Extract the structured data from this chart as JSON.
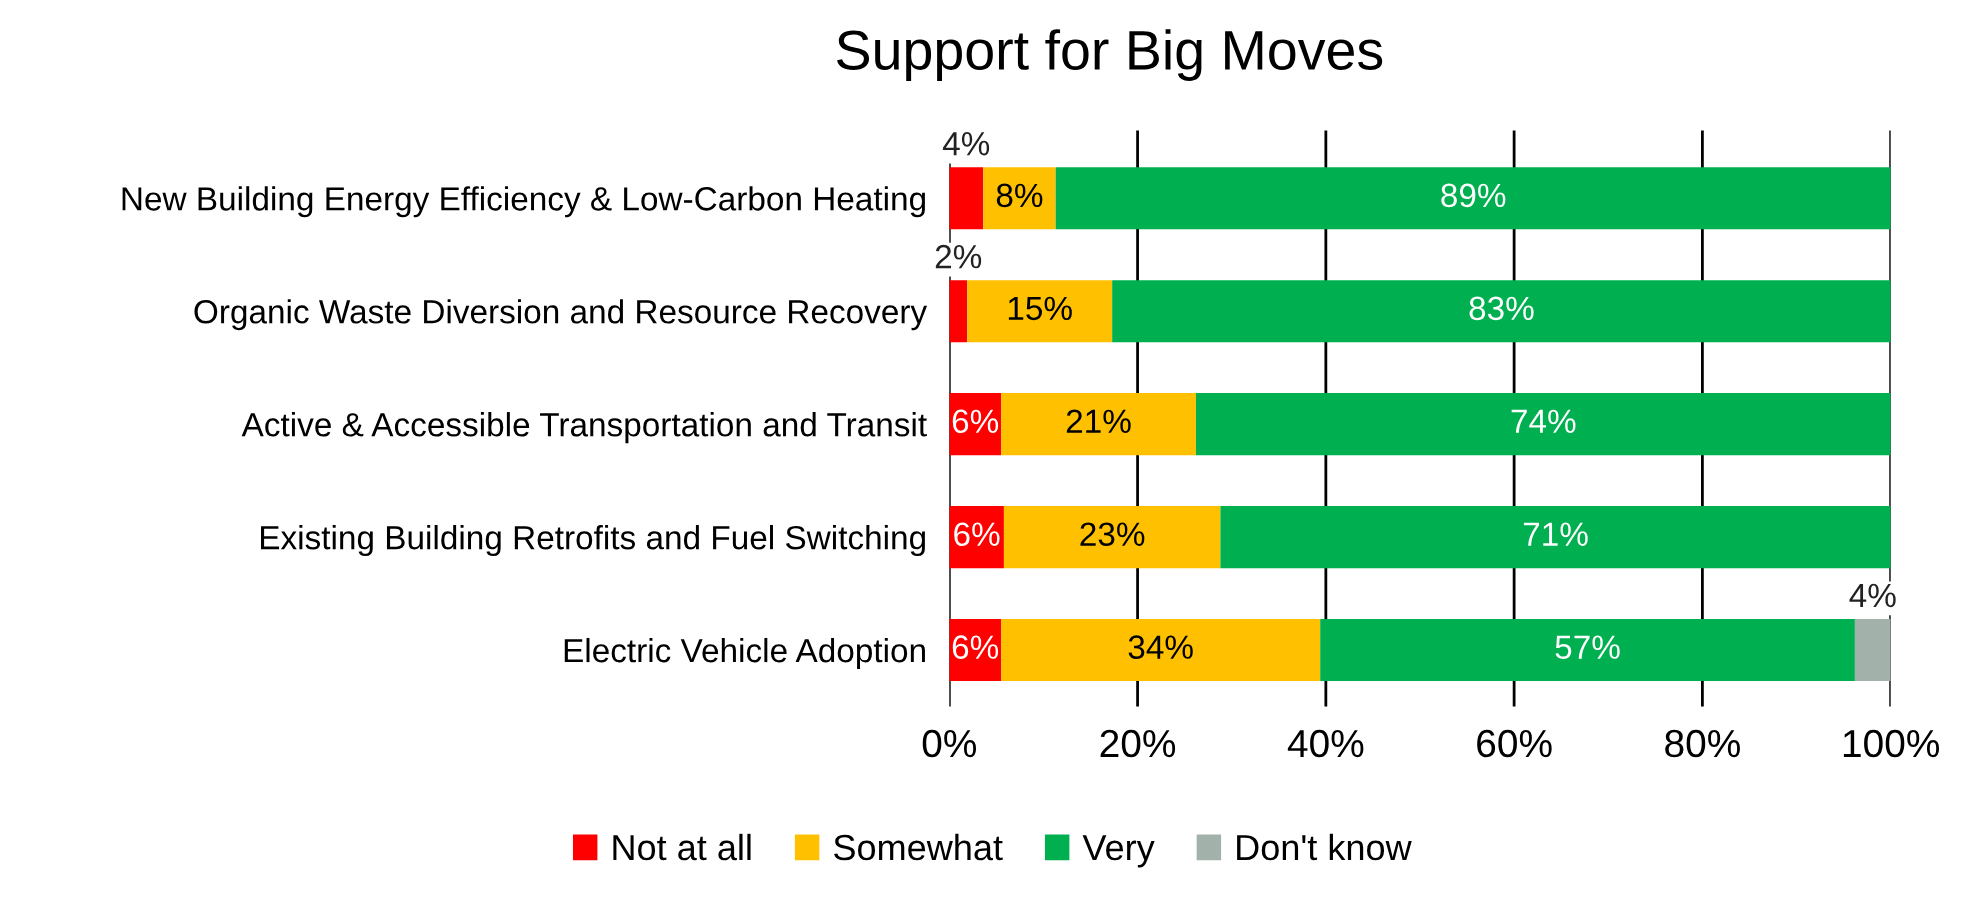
{
  "chart_data": {
    "type": "bar",
    "title": "Support for Big Moves",
    "orientation": "horizontal",
    "stacked": true,
    "categories": [
      "New Building Energy Efficiency & Low-Carbon Heating",
      "Organic Waste Diversion and Resource Recovery",
      "Active & Accessible Transportation and Transit",
      "Existing Building Retrofits and Fuel Switching",
      "Electric Vehicle Adoption"
    ],
    "series": [
      {
        "name": "Not at all",
        "color": "#ff0000",
        "values": [
          3.6,
          1.9,
          5.5,
          5.8,
          5.5
        ],
        "value_labels": [
          "4%",
          "2%",
          "6%",
          "6%",
          "6%"
        ]
      },
      {
        "name": "Somewhat",
        "color": "#ffc000",
        "values": [
          7.7,
          15.4,
          20.7,
          23.0,
          33.9
        ],
        "value_labels": [
          "8%",
          "15%",
          "21%",
          "23%",
          "34%"
        ]
      },
      {
        "name": "Very",
        "color": "#00b050",
        "values": [
          88.7,
          82.7,
          73.8,
          71.2,
          56.8
        ],
        "value_labels": [
          "89%",
          "83%",
          "74%",
          "71%",
          "57%"
        ]
      },
      {
        "name": "Don't know",
        "color": "#a2b2aa",
        "values": [
          null,
          null,
          null,
          null,
          3.8
        ],
        "value_labels": [
          null,
          null,
          null,
          null,
          "4%"
        ]
      }
    ],
    "xlim": [
      0,
      100
    ],
    "xticks": [
      {
        "value": 0,
        "label": "0%"
      },
      {
        "value": 20,
        "label": "20%"
      },
      {
        "value": 40,
        "label": "40%"
      },
      {
        "value": 60,
        "label": "60%"
      },
      {
        "value": 80,
        "label": "80%"
      },
      {
        "value": 100,
        "label": "100%"
      }
    ],
    "grid": "x",
    "legend": "bottom"
  }
}
